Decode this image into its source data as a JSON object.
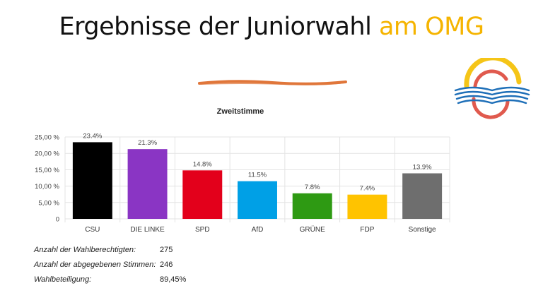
{
  "slide": {
    "title_main": "Ergebnisse der Juniorwahl ",
    "title_accent": "am OMG",
    "accent_color": "#f5b400",
    "divider_color": "#e0763a"
  },
  "logo": {
    "icon": "open-book-circle-logo",
    "colors": [
      "#f5c518",
      "#e05a4e",
      "#1e6fb8"
    ]
  },
  "chart_data": {
    "type": "bar",
    "title": "Zweitstimme",
    "categories": [
      "CSU",
      "DIE LINKE",
      "SPD",
      "AfD",
      "GRÜNE",
      "FDP",
      "Sonstige"
    ],
    "values": [
      23.4,
      21.3,
      14.8,
      11.5,
      7.8,
      7.4,
      13.9
    ],
    "value_labels": [
      "23.4%",
      "21.3%",
      "14.8%",
      "11.5%",
      "7.8%",
      "7.4%",
      "13.9%"
    ],
    "colors": [
      "#000000",
      "#8a35c4",
      "#e3001b",
      "#00a0e6",
      "#2e9a13",
      "#ffc300",
      "#6e6e6e"
    ],
    "yticks": [
      0,
      5,
      10,
      15,
      20,
      25
    ],
    "ytick_labels": [
      "0",
      "5,00 %",
      "10,00 %",
      "15,00 %",
      "20,00 %",
      "25,00 %"
    ],
    "ylim": [
      0,
      25
    ],
    "grid": true
  },
  "stats": [
    {
      "label": "Anzahl der Wahlberechtigten:",
      "value": "275"
    },
    {
      "label": "Anzahl der abgegebenen Stimmen:",
      "value": "246"
    },
    {
      "label": "Wahlbeteiligung:",
      "value": "89,45%"
    }
  ]
}
